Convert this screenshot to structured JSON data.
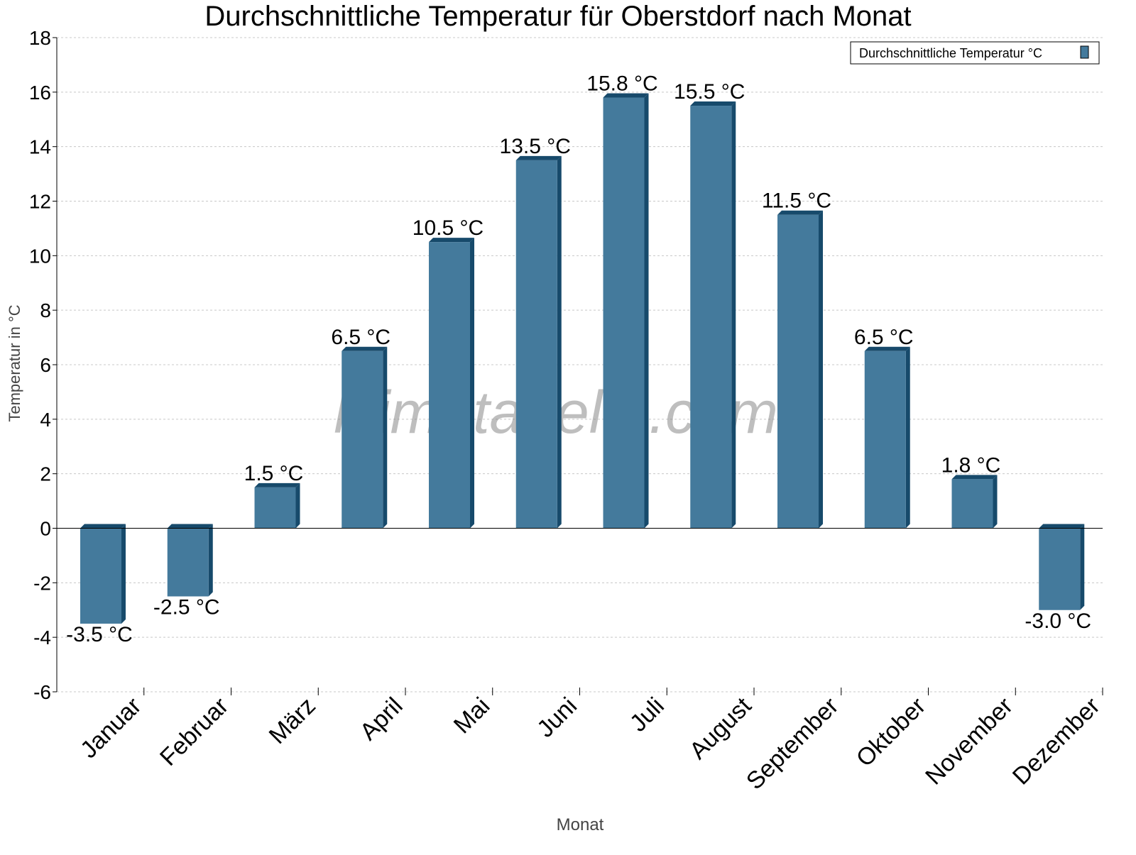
{
  "chart_data": {
    "type": "bar",
    "title": "Durchschnittliche Temperatur für Oberstdorf nach Monat",
    "xlabel": "Monat",
    "ylabel": "Temperatur in °C",
    "categories": [
      "Januar",
      "Februar",
      "März",
      "April",
      "Mai",
      "Juni",
      "Juli",
      "August",
      "September",
      "Oktober",
      "November",
      "Dezember"
    ],
    "series": [
      {
        "name": "Durchschnittliche Temperatur °C",
        "values": [
          -3.5,
          -2.5,
          1.5,
          6.5,
          10.5,
          13.5,
          15.8,
          15.5,
          11.5,
          6.5,
          1.8,
          -3.0
        ]
      }
    ],
    "data_labels": [
      "-3.5 °C",
      "-2.5 °C",
      "1.5 °C",
      "6.5 °C",
      "10.5 °C",
      "13.5 °C",
      "15.8 °C",
      "15.5 °C",
      "11.5 °C",
      "6.5 °C",
      "1.8 °C",
      "-3.0 °C"
    ],
    "ylim": [
      -6,
      18
    ],
    "yticks": [
      -6,
      -4,
      -2,
      0,
      2,
      4,
      6,
      8,
      10,
      12,
      14,
      16,
      18
    ],
    "grid": true,
    "legend": "top-right",
    "colors": {
      "bar": "#447a9c",
      "bar_side": "#174a6b",
      "grid": "#c8c8c8"
    },
    "watermark": "klimatabelle.com"
  }
}
